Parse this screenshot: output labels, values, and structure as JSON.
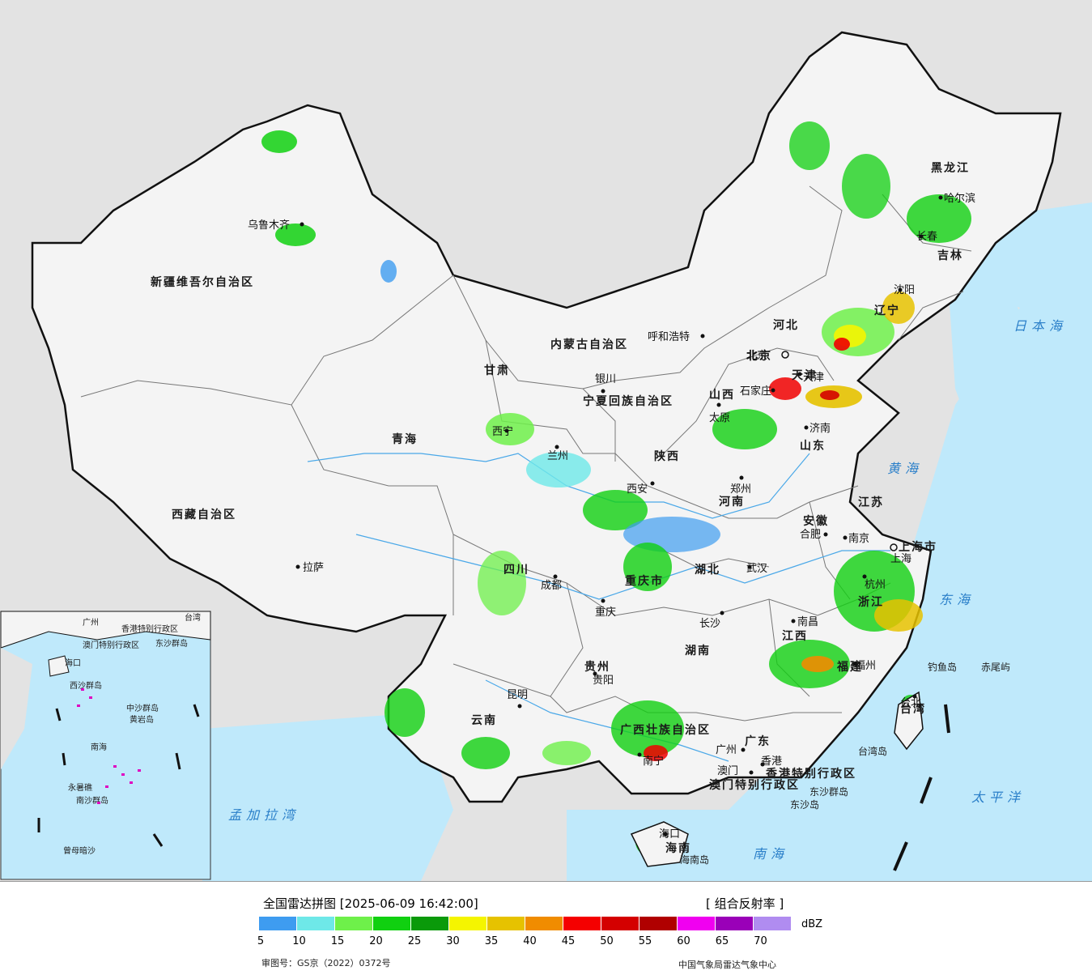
{
  "map": {
    "provinces": [
      "新疆维吾尔自治区",
      "西藏自治区",
      "青海",
      "甘肃",
      "内蒙古自治区",
      "黑龙江",
      "吉林",
      "辽宁",
      "河北",
      "山西",
      "陕西",
      "四川",
      "云南",
      "贵州",
      "湖南",
      "湖北",
      "河南",
      "山东",
      "安徽",
      "江苏",
      "浙江",
      "江西",
      "福建",
      "广东",
      "广西壮族自治区",
      "海南",
      "台湾",
      "宁夏回族自治区",
      "上海市",
      "重庆市",
      "天津",
      "北京"
    ],
    "cities": [
      "乌鲁木齐",
      "拉萨",
      "西宁",
      "兰州",
      "银川",
      "呼和浩特",
      "北京",
      "天津",
      "石家庄",
      "太原",
      "济南",
      "郑州",
      "西安",
      "成都",
      "重庆",
      "武汉",
      "合肥",
      "南京",
      "上海",
      "杭州",
      "南昌",
      "长沙",
      "贵阳",
      "昆明",
      "南宁",
      "广州",
      "澳门",
      "香港",
      "福州",
      "台北",
      "哈尔滨",
      "长春",
      "沈阳",
      "海口"
    ],
    "special_regions": [
      "香港特别行政区",
      "澳门特别行政区"
    ],
    "seas": [
      "日本海",
      "黄海",
      "东海",
      "南海",
      "太平洋",
      "孟加拉湾"
    ],
    "islands": [
      "钓鱼岛",
      "赤尾屿",
      "台湾岛",
      "东沙群岛",
      "东沙岛",
      "海南岛"
    ],
    "inset_labels": [
      "香港特别行政区",
      "澳门特别行政区",
      "东沙群岛",
      "海口",
      "西沙群岛",
      "中沙群岛",
      "黄岩岛",
      "南海",
      "永暑礁",
      "南沙群岛",
      "曾母暗沙",
      "广州",
      "台湾"
    ]
  },
  "legend": {
    "title": "全国雷达拼图 [2025-06-09 16:42:00]",
    "product": "[ 组合反射率 ]",
    "unit": "dBZ",
    "ticks": [
      "5",
      "10",
      "15",
      "20",
      "25",
      "30",
      "35",
      "40",
      "45",
      "50",
      "55",
      "60",
      "65",
      "70"
    ],
    "colors": [
      "#3e9cf0",
      "#6ee8e8",
      "#6ef04a",
      "#10d010",
      "#0a9a0a",
      "#f5f500",
      "#e6c200",
      "#f08c00",
      "#f50000",
      "#d40000",
      "#b00000",
      "#f000f0",
      "#9a00b8",
      "#b08cf0"
    ],
    "approval": "审图号：GS京（2022）0372号",
    "credit": "中国气象局雷达气象中心"
  }
}
